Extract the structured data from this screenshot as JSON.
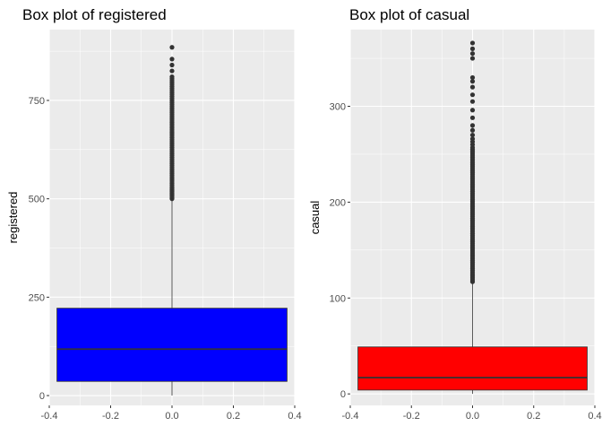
{
  "chart_data": [
    {
      "type": "boxplot",
      "title": "Box plot of registered",
      "xlabel": "",
      "ylabel": "registered",
      "fill_color": "#0000ff",
      "xlim": [
        -0.4,
        0.4
      ],
      "x_ticks": [
        "-0.4",
        "-0.2",
        "0.0",
        "0.2",
        "0.4"
      ],
      "ylim": [
        -25,
        930
      ],
      "y_ticks": [
        "0",
        "250",
        "500",
        "750"
      ],
      "y_tick_values": [
        0,
        250,
        500,
        750
      ],
      "box": {
        "x_min": -0.375,
        "x_max": 0.375,
        "whisker_low": 0,
        "q1": 36,
        "median": 118,
        "q3": 222,
        "whisker_high": 500
      },
      "outliers": [
        500,
        503,
        506,
        509,
        512,
        515,
        518,
        521,
        524,
        527,
        530,
        535,
        540,
        545,
        550,
        555,
        560,
        565,
        570,
        575,
        580,
        585,
        590,
        595,
        600,
        605,
        610,
        615,
        620,
        625,
        630,
        635,
        640,
        645,
        650,
        655,
        660,
        665,
        670,
        675,
        680,
        685,
        690,
        695,
        700,
        705,
        710,
        715,
        720,
        725,
        730,
        735,
        740,
        745,
        750,
        755,
        760,
        765,
        770,
        775,
        780,
        785,
        790,
        795,
        800,
        805,
        810,
        825,
        840,
        855,
        885
      ],
      "grid": true
    },
    {
      "type": "boxplot",
      "title": "Box plot of casual",
      "xlabel": "",
      "ylabel": "casual",
      "fill_color": "#ff0000",
      "xlim": [
        -0.4,
        0.4
      ],
      "x_ticks": [
        "-0.4",
        "-0.2",
        "0.0",
        "0.2",
        "0.4"
      ],
      "ylim": [
        -12,
        380
      ],
      "y_ticks": [
        "0",
        "100",
        "200",
        "300"
      ],
      "y_tick_values": [
        0,
        100,
        200,
        300
      ],
      "box": {
        "x_min": -0.375,
        "x_max": 0.375,
        "whisker_low": 0,
        "q1": 4,
        "median": 17,
        "q3": 49,
        "whisker_high": 116
      },
      "outliers": [
        117,
        119,
        121,
        123,
        125,
        127,
        129,
        131,
        133,
        135,
        137,
        139,
        141,
        143,
        145,
        147,
        149,
        151,
        153,
        155,
        157,
        159,
        161,
        163,
        165,
        167,
        169,
        171,
        173,
        175,
        177,
        179,
        181,
        183,
        185,
        187,
        189,
        191,
        193,
        195,
        197,
        199,
        201,
        203,
        205,
        207,
        209,
        211,
        213,
        215,
        217,
        219,
        221,
        223,
        225,
        227,
        229,
        231,
        233,
        235,
        237,
        239,
        241,
        243,
        245,
        247,
        249,
        251,
        253,
        255,
        257,
        260,
        263,
        266,
        270,
        275,
        280,
        288,
        296,
        305,
        312,
        320,
        326,
        330,
        350,
        355,
        360,
        366
      ],
      "grid": true
    }
  ]
}
